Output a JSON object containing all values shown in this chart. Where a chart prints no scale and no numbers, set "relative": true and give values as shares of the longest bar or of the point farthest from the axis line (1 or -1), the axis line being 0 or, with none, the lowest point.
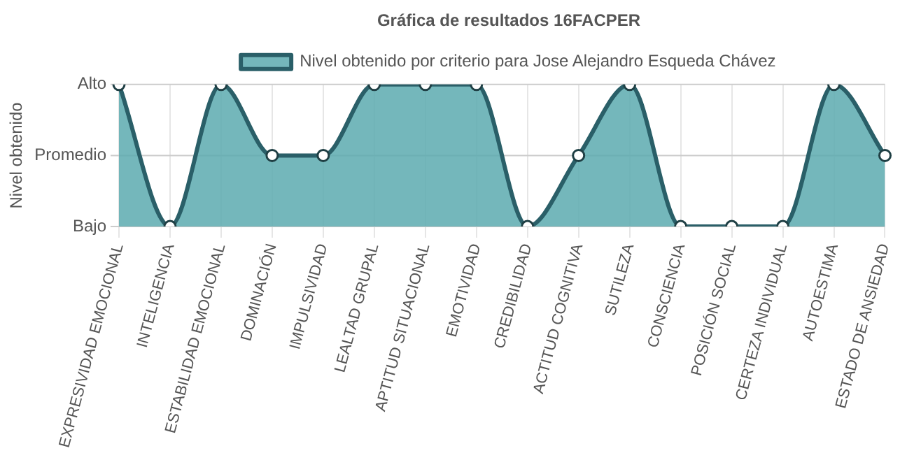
{
  "chart_data": {
    "type": "area",
    "title": "Gráfica de resultados 16FACPER",
    "ylabel": "Nivel obtenido",
    "relative": true,
    "ref_lines": [
      {
        "axis": "y",
        "value": 0,
        "label": "Bajo",
        "color": "#cccccc"
      },
      {
        "axis": "y",
        "value": 0.5,
        "label": "Promedio",
        "color": "#cccccc"
      },
      {
        "axis": "y",
        "value": 1,
        "label": "Alto",
        "color": "#cccccc"
      }
    ],
    "categories": [
      "EXPRESIVIDAD EMOCIONAL",
      "INTELIGENCIA",
      "ESTABILIDAD EMOCIONAL",
      "DOMINACIÓN",
      "IMPULSIVIDAD",
      "LEALTAD GRUPAL",
      "APTITUD SITUACIONAL",
      "EMOTIVIDAD",
      "CREDIBILIDAD",
      "ACTITUD COGNITIVA",
      "SUTILEZA",
      "CONSCIENCIA",
      "POSICIÓN SOCIAL",
      "CERTEZA INDIVIDUAL",
      "AUTOESTIMA",
      "ESTADO DE ANSIEDAD"
    ],
    "series": [
      {
        "name": "Nivel obtenido por criterio para Jose Alejandro Esqueda Chávez",
        "color": "#2a5f68",
        "values": [
          1,
          0,
          1,
          0.5,
          0.5,
          1,
          1,
          1,
          0,
          0.5,
          1,
          0,
          0,
          0,
          1,
          0.5
        ]
      }
    ],
    "grid": true,
    "legend": "top",
    "marker": "circle",
    "line_style": "solid"
  }
}
